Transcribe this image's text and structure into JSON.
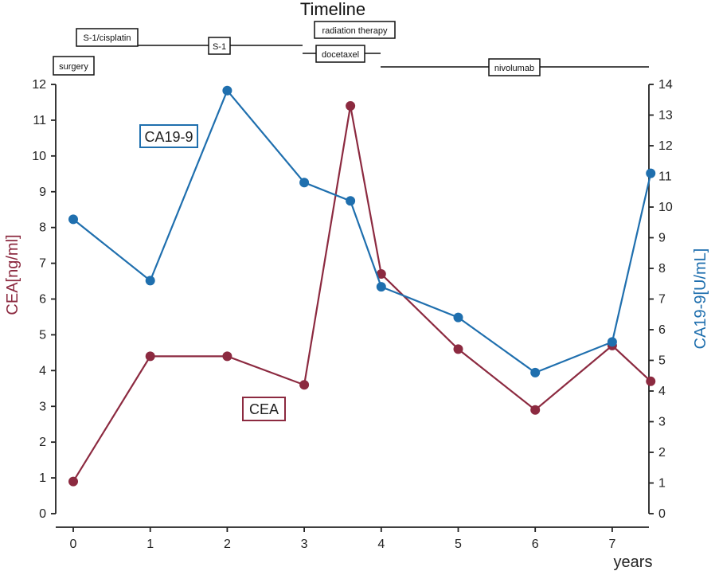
{
  "chart_data": {
    "type": "line",
    "title": "Timeline",
    "xlabel": "years",
    "ylabel_left": "CEA[ng/ml]",
    "ylabel_right": "CA19-9[U/mL]",
    "xlim": [
      0,
      7.5
    ],
    "ylim_left": [
      0,
      12
    ],
    "ylim_right": [
      0,
      14
    ],
    "x_ticks": [
      "0",
      "1",
      "2",
      "3",
      "4",
      "5",
      "6",
      "7"
    ],
    "y_left_ticks": [
      "0",
      "1",
      "2",
      "3",
      "4",
      "5",
      "6",
      "7",
      "8",
      "9",
      "10",
      "11",
      "12"
    ],
    "y_right_ticks": [
      "0",
      "1",
      "2",
      "3",
      "4",
      "5",
      "6",
      "7",
      "8",
      "9",
      "10",
      "11",
      "12",
      "13",
      "14"
    ],
    "series": [
      {
        "name": "CEA",
        "axis": "left",
        "color": "#8c2a40",
        "x": [
          0,
          1,
          2,
          3,
          3.6,
          4,
          5,
          6,
          7,
          7.5
        ],
        "y": [
          0.9,
          4.4,
          4.4,
          3.6,
          11.4,
          6.7,
          4.6,
          2.9,
          4.7,
          3.7
        ]
      },
      {
        "name": "CA19-9",
        "axis": "right",
        "color": "#1f6fae",
        "x": [
          0,
          1,
          2,
          3,
          3.6,
          4,
          5,
          6,
          7,
          7.5
        ],
        "y": [
          9.6,
          7.6,
          13.8,
          10.8,
          10.2,
          7.4,
          6.4,
          4.6,
          5.6,
          11.1
        ]
      }
    ],
    "annotations": [
      {
        "text": "CA19-9",
        "color": "#1f6fae"
      },
      {
        "text": "CEA",
        "color": "#8c2a40"
      }
    ],
    "timeline": [
      {
        "label": "surgery"
      },
      {
        "label": "S-1/cisplatin"
      },
      {
        "label": "S-1"
      },
      {
        "label": "radiation therapy"
      },
      {
        "label": "docetaxel"
      },
      {
        "label": "nivolumab"
      }
    ],
    "grid": false
  }
}
